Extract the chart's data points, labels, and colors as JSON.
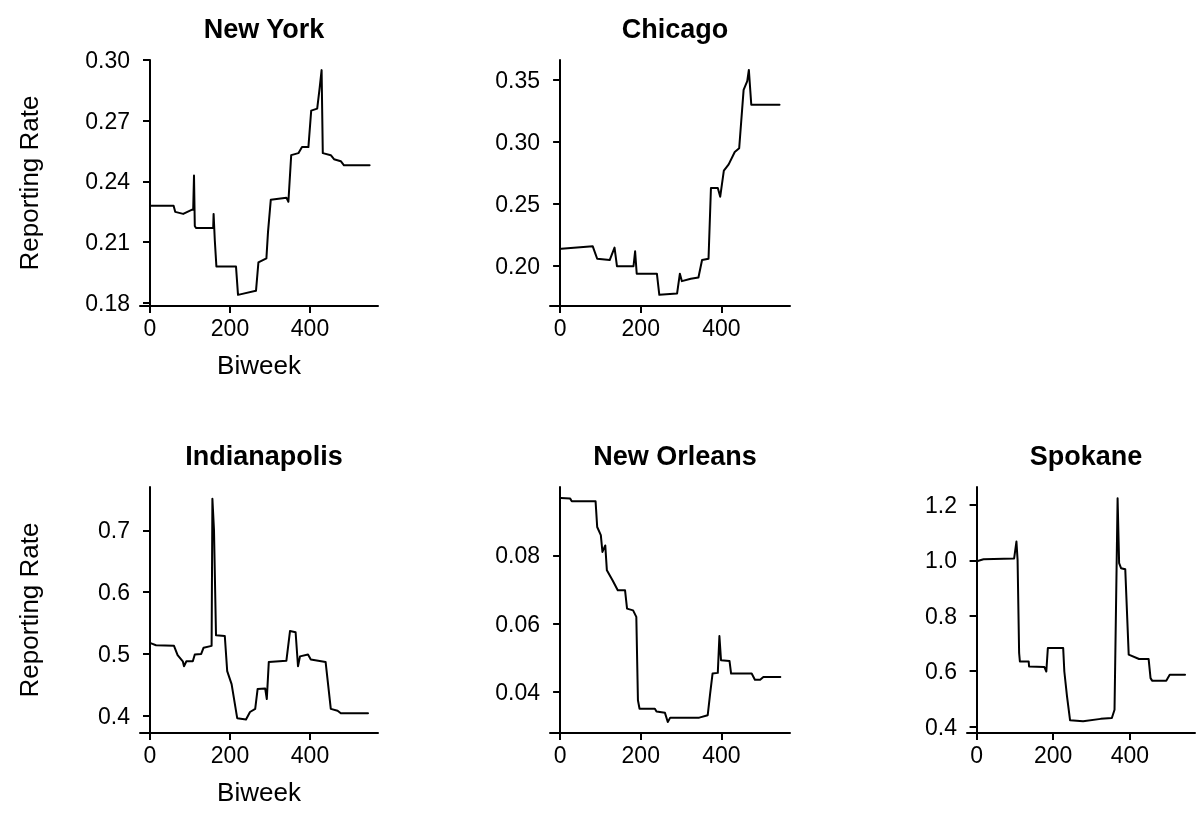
{
  "chart_data": [
    {
      "type": "line",
      "title": "New York",
      "xlabel": "Biweek",
      "ylabel": "Reporting Rate",
      "color": "#000000",
      "grid": false,
      "marker": "none",
      "line_style": "solid",
      "xlim": [
        -25,
        570
      ],
      "xticks": [
        0,
        200,
        400
      ],
      "ylim": [
        0.1785,
        0.3
      ],
      "yticks": [
        0.18,
        0.21,
        0.24,
        0.27,
        {
          "value": 0.3,
          "label": "0.30"
        }
      ],
      "x": [
        2,
        59,
        63,
        83,
        104,
        108,
        110,
        112,
        115,
        158,
        159,
        162,
        166,
        215,
        220,
        265,
        271,
        291,
        295,
        302,
        341,
        346,
        353,
        371,
        380,
        396,
        403,
        418,
        424,
        429,
        432,
        452,
        460,
        477,
        485,
        549
      ],
      "values": [
        0.228,
        0.228,
        0.225,
        0.224,
        0.226,
        0.226,
        0.243,
        0.218,
        0.217,
        0.217,
        0.224,
        0.211,
        0.198,
        0.198,
        0.184,
        0.186,
        0.2,
        0.202,
        0.215,
        0.231,
        0.232,
        0.23,
        0.253,
        0.254,
        0.257,
        0.257,
        0.275,
        0.276,
        0.286,
        0.295,
        0.254,
        0.253,
        0.251,
        0.25,
        0.248,
        0.248
      ]
    },
    {
      "type": "line",
      "title": "Chicago",
      "color": "#000000",
      "grid": false,
      "marker": "none",
      "line_style": "solid",
      "xlim": [
        -25,
        570
      ],
      "xticks": [
        0,
        200,
        400
      ],
      "ylim": [
        0.168,
        0.366
      ],
      "yticks": [
        {
          "value": 0.2,
          "label": "0.20"
        },
        0.25,
        {
          "value": 0.3,
          "label": "0.30"
        },
        0.35
      ],
      "x": [
        3,
        81,
        92,
        123,
        135,
        141,
        182,
        186,
        190,
        240,
        246,
        290,
        297,
        302,
        324,
        343,
        352,
        368,
        374,
        391,
        397,
        406,
        418,
        433,
        444,
        455,
        464,
        468,
        474,
        544
      ],
      "values": [
        0.214,
        0.216,
        0.206,
        0.205,
        0.215,
        0.2,
        0.2,
        0.212,
        0.194,
        0.194,
        0.177,
        0.178,
        0.194,
        0.188,
        0.19,
        0.191,
        0.205,
        0.206,
        0.263,
        0.263,
        0.256,
        0.277,
        0.282,
        0.292,
        0.295,
        0.342,
        0.349,
        0.358,
        0.33,
        0.33
      ]
    },
    {
      "type": "line",
      "title": "Indianapolis",
      "xlabel": "Biweek",
      "ylabel": "Reporting Rate",
      "color": "#000000",
      "grid": false,
      "marker": "none",
      "line_style": "solid",
      "xlim": [
        -25,
        570
      ],
      "xticks": [
        0,
        200,
        400
      ],
      "ylim": [
        0.372,
        0.77
      ],
      "yticks": [
        0.4,
        0.5,
        0.6,
        0.7
      ],
      "x": [
        3,
        15,
        60,
        69,
        82,
        85,
        91,
        107,
        112,
        128,
        134,
        154,
        156,
        160,
        165,
        187,
        193,
        204,
        218,
        240,
        250,
        263,
        269,
        288,
        292,
        297,
        341,
        350,
        364,
        370,
        375,
        395,
        402,
        439,
        452,
        469,
        477,
        545
      ],
      "values": [
        0.517,
        0.514,
        0.513,
        0.498,
        0.488,
        0.48,
        0.488,
        0.488,
        0.499,
        0.5,
        0.51,
        0.513,
        0.751,
        0.7,
        0.53,
        0.529,
        0.472,
        0.451,
        0.396,
        0.394,
        0.406,
        0.411,
        0.443,
        0.444,
        0.427,
        0.487,
        0.489,
        0.537,
        0.535,
        0.48,
        0.496,
        0.499,
        0.491,
        0.487,
        0.411,
        0.408,
        0.404,
        0.404
      ]
    },
    {
      "type": "line",
      "title": "New Orleans",
      "color": "#000000",
      "grid": false,
      "marker": "none",
      "line_style": "solid",
      "xlim": [
        -25,
        570
      ],
      "xticks": [
        0,
        200,
        400
      ],
      "ylim": [
        0.028,
        0.1
      ],
      "yticks": [
        0.04,
        0.06,
        0.08
      ],
      "x": [
        2,
        25,
        29,
        88,
        92,
        101,
        105,
        112,
        116,
        130,
        143,
        161,
        166,
        181,
        189,
        193,
        197,
        235,
        239,
        260,
        267,
        273,
        345,
        366,
        372,
        378,
        391,
        395,
        399,
        420,
        424,
        475,
        483,
        496,
        504,
        546
      ],
      "values": [
        0.0968,
        0.0966,
        0.0958,
        0.0958,
        0.0883,
        0.0859,
        0.081,
        0.0829,
        0.0756,
        0.0727,
        0.0698,
        0.0698,
        0.0644,
        0.0639,
        0.062,
        0.0376,
        0.0351,
        0.0351,
        0.0343,
        0.0339,
        0.0312,
        0.0325,
        0.0325,
        0.0332,
        0.0395,
        0.0454,
        0.0456,
        0.0564,
        0.0493,
        0.0491,
        0.0454,
        0.0454,
        0.0436,
        0.0436,
        0.0444,
        0.0444
      ]
    },
    {
      "type": "line",
      "title": "Spokane",
      "color": "#000000",
      "grid": false,
      "marker": "none",
      "line_style": "solid",
      "xlim": [
        -25,
        570
      ],
      "xticks": [
        0,
        200,
        400
      ],
      "ylim": [
        0.377,
        1.265
      ],
      "yticks": [
        0.4,
        0.6,
        0.8,
        {
          "value": 1,
          "label": "1.0"
        },
        1.2
      ],
      "x": [
        3,
        18,
        98,
        104,
        107,
        111,
        113,
        136,
        137,
        177,
        182,
        186,
        226,
        229,
        236,
        244,
        278,
        324,
        353,
        360,
        368,
        372,
        377,
        388,
        397,
        424,
        449,
        454,
        458,
        495,
        504,
        544
      ],
      "values": [
        0.998,
        1.004,
        1.007,
        1.068,
        1.002,
        0.666,
        0.635,
        0.635,
        0.617,
        0.615,
        0.599,
        0.684,
        0.684,
        0.599,
        0.509,
        0.423,
        0.419,
        0.428,
        0.431,
        0.461,
        1.224,
        0.99,
        0.972,
        0.968,
        0.66,
        0.644,
        0.644,
        0.575,
        0.566,
        0.566,
        0.587,
        0.587
      ]
    }
  ]
}
